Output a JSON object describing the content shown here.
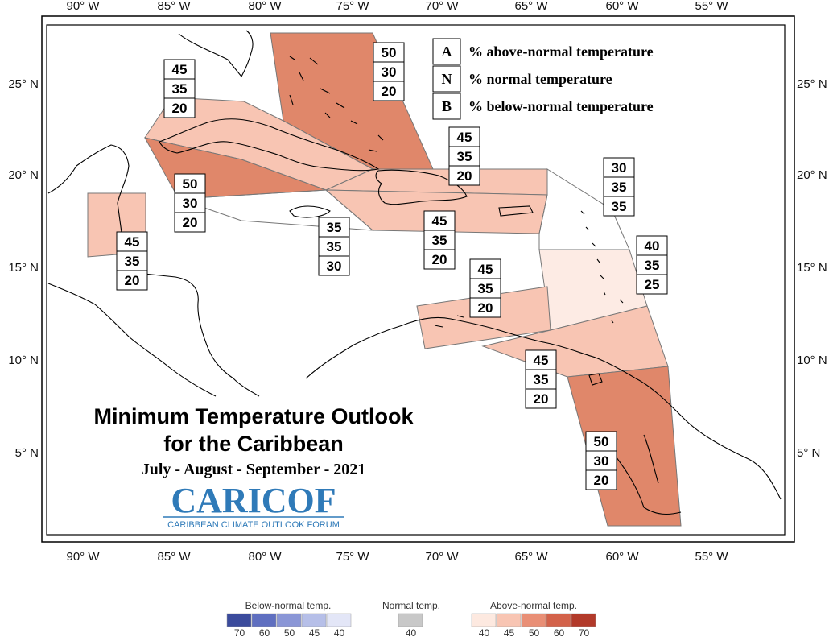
{
  "map": {
    "title_line1": "Minimum Temperature Outlook",
    "title_line2": "for the Caribbean",
    "period": "July - August - September - 2021",
    "logo_text": "CARICOF",
    "logo_subtitle": "CARIBBEAN CLIMATE OUTLOOK FORUM",
    "lon_ticks": [
      "90° W",
      "85° W",
      "80° W",
      "75° W",
      "70° W",
      "65° W",
      "60° W",
      "55° W"
    ],
    "lat_ticks": [
      "25° N",
      "20° N",
      "15° N",
      "10° N",
      "5° N"
    ]
  },
  "key": {
    "a_letter": "A",
    "a_text": "% above-normal temperature",
    "n_letter": "N",
    "n_text": "% normal temperature",
    "b_letter": "B",
    "b_text": "% below-normal temperature"
  },
  "regions": [
    {
      "id": "bahamas",
      "above": "50",
      "normal": "30",
      "below": "20",
      "color": "#e0876a"
    },
    {
      "id": "cuba",
      "above": "45",
      "normal": "35",
      "below": "20",
      "color": "#f8c5b3"
    },
    {
      "id": "cayman",
      "above": "50",
      "normal": "30",
      "below": "20",
      "color": "#e0876a"
    },
    {
      "id": "belize",
      "above": "45",
      "normal": "35",
      "below": "20",
      "color": "#f8c5b3"
    },
    {
      "id": "jamaica",
      "above": "35",
      "normal": "35",
      "below": "30",
      "color": "#ffffff"
    },
    {
      "id": "hispaniola-north",
      "above": "45",
      "normal": "35",
      "below": "20",
      "color": "#f8c5b3"
    },
    {
      "id": "hispaniola-south",
      "above": "45",
      "normal": "35",
      "below": "20",
      "color": "#f8c5b3"
    },
    {
      "id": "leewards",
      "above": "30",
      "normal": "35",
      "below": "35",
      "color": "#ffffff"
    },
    {
      "id": "windwards",
      "above": "40",
      "normal": "35",
      "below": "25",
      "color": "#fdebe4"
    },
    {
      "id": "abc-islands",
      "above": "45",
      "normal": "35",
      "below": "20",
      "color": "#f8c5b3"
    },
    {
      "id": "trinidad",
      "above": "45",
      "normal": "35",
      "below": "20",
      "color": "#f8c5b3"
    },
    {
      "id": "guianas",
      "above": "50",
      "normal": "30",
      "below": "20",
      "color": "#e0876a"
    }
  ],
  "colorbar": {
    "below_title": "Below-normal temp.",
    "normal_title": "Normal temp.",
    "above_title": "Above-normal temp.",
    "below_colors": [
      "#3b4b9c",
      "#5f6fc0",
      "#8a96d6",
      "#b6bfe8",
      "#e3e6f7"
    ],
    "below_labels": [
      "70",
      "60",
      "50",
      "45",
      "40"
    ],
    "normal_color": "#c8c8c8",
    "normal_label": "40",
    "above_colors": [
      "#fde9e0",
      "#f8c5b3",
      "#e98f76",
      "#d3624a",
      "#b23a2a"
    ],
    "above_labels": [
      "40",
      "45",
      "50",
      "60",
      "70"
    ]
  }
}
